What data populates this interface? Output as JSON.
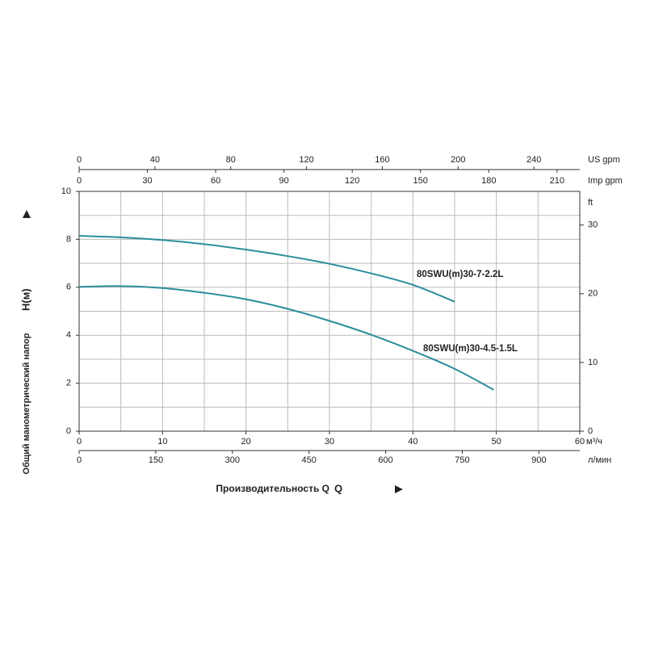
{
  "chart_data": {
    "type": "line",
    "x_label": "Производительность Q",
    "y_label": "Общий манометрический напор",
    "y_unit": "H(м)",
    "xlim": [
      0,
      60
    ],
    "xticks": [
      0,
      10,
      20,
      30,
      40,
      50,
      60
    ],
    "x_unit": "м³/ч",
    "ylim": [
      0,
      10
    ],
    "yticks": [
      0,
      2,
      4,
      6,
      8,
      10
    ],
    "y2lim": [
      0,
      34.9
    ],
    "y2ticks": [
      0,
      10,
      20,
      30
    ],
    "y2_unit": "ft",
    "us_gpm_axis": {
      "label": "US gpm",
      "lim": [
        0,
        264.2
      ],
      "ticks": [
        0,
        40,
        80,
        120,
        160,
        200,
        240
      ]
    },
    "imp_gpm_axis": {
      "label": "Imp gpm",
      "lim": [
        0,
        220
      ],
      "ticks": [
        0,
        30,
        60,
        90,
        120,
        150,
        180,
        210
      ]
    },
    "lpm_axis": {
      "label": "л/мин",
      "lim": [
        0,
        980
      ],
      "ticks": [
        0,
        150,
        300,
        450,
        600,
        750,
        900
      ]
    },
    "grid": true,
    "series": [
      {
        "name": "80SWU(m)30-7-2.2L",
        "color": "#2b8d9c",
        "x": [
          0,
          5,
          10,
          15,
          20,
          25,
          30,
          35,
          40,
          45
        ],
        "values": [
          8.15,
          8.08,
          7.97,
          7.8,
          7.57,
          7.3,
          6.98,
          6.58,
          6.1,
          5.4
        ]
      },
      {
        "name": "80SWU(m)30-4.5-1.5L",
        "color": "#2b8d9c",
        "x": [
          0,
          5,
          10,
          15,
          20,
          25,
          30,
          35,
          40,
          45,
          49.7
        ],
        "values": [
          6.02,
          6.05,
          5.97,
          5.77,
          5.5,
          5.1,
          4.6,
          4.02,
          3.35,
          2.6,
          1.72
        ]
      }
    ]
  }
}
